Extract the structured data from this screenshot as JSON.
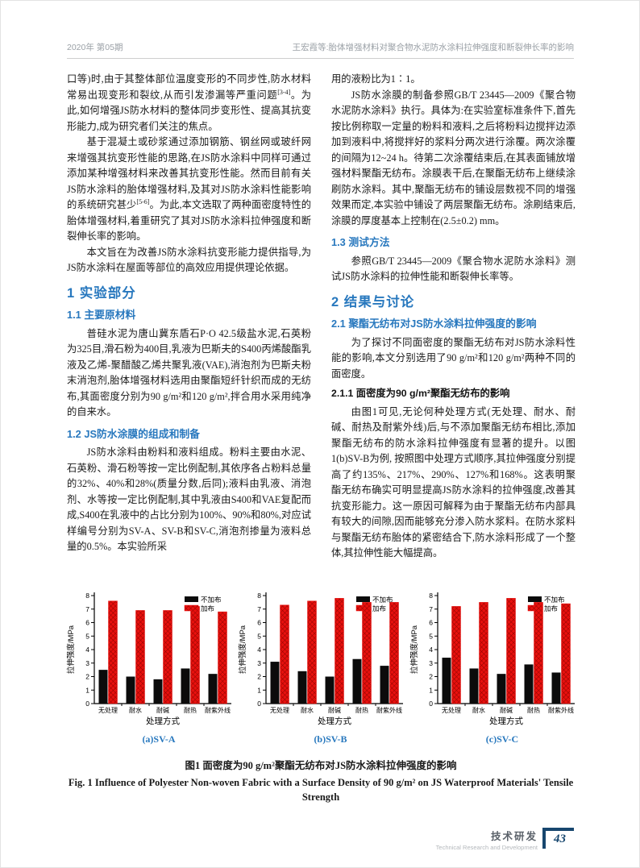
{
  "colors": {
    "accent_blue": "#2878be",
    "footer_navy": "#17466e",
    "bar_black": "#0b0b0b",
    "bar_red": "#e8110e",
    "header_gray": "#9aa0a6"
  },
  "header": {
    "issue": "2020年 第05期",
    "running_title": "王宏霞等:胎体增强材料对聚合物水泥防水涂料拉伸强度和断裂伸长率的影响"
  },
  "intro": {
    "p1a": "口等)时,由于其整体部位温度变形的不同步性,防水材料常易出现变形和裂纹,从而引发渗漏等严重问题",
    "p1_sup": "[3-4]",
    "p1b": "。为此,如何增强JS防水材料的整体同步变形性、提高其抗变形能力,成为研究者们关注的焦点。",
    "p2a": "基于混凝土或砂浆通过添加钢筋、钢丝网或玻纤网来增强其抗变形性能的思路,在JS防水涂料中同样可通过添加某种增强材料来改善其抗变形性能。然而目前有关JS防水涂料的胎体增强材料,及其对JS防水涂料性能影响的系统研究甚少",
    "p2_sup": "[5-6]",
    "p2b": "。为此,本文选取了两种面密度特性的胎体增强材料,着重研究了其对JS防水涂料拉伸强度和断裂伸长率的影响。",
    "p3": "本文旨在为改善JS防水涂料抗变形能力提供指导,为JS防水涂料在屋面等部位的高效应用提供理论依据。"
  },
  "section1": {
    "title": "1 实验部分",
    "s11_title": "1.1 主要原材料",
    "s11_p": "普硅水泥为唐山冀东盾石P·O 42.5级盐水泥,石英粉为325目,滑石粉为400目,乳液为巴斯夫的S400丙烯酸酯乳液及乙烯-聚醋酸乙烯共聚乳液(VAE),消泡剂为巴斯夫粉末消泡剂,胎体增强材料选用由聚酯短纤针织而成的无纺布,其面密度分别为90 g/m²和120 g/m²,拌合用水采用纯净的自来水。",
    "s12_title": "1.2 JS防水涂膜的组成和制备",
    "s12_p": "JS防水涂料由粉料和液料组成。粉料主要由水泥、石英粉、滑石粉等按一定比例配制,其依序各占粉料总量的32%、40%和28%(质量分数,后同);液料由乳液、消泡剂、水等按一定比例配制,其中乳液由S400和VAE复配而成,S400在乳液中的占比分别为100%、90%和80%,对应试样编号分别为SV-A、SV-B和SV-C,消泡剂掺量为液料总量的0.5%。本实验所采"
  },
  "right_column": {
    "p_cont": "用的液粉比为1∶1。",
    "p_prep": "JS防水涂膜的制备参照GB/T 23445—2009《聚合物水泥防水涂料》执行。具体为:在实验室标准条件下,首先按比例称取一定量的粉料和液料,之后将粉料边搅拌边添加到液料中,将搅拌好的浆料分两次进行涂覆。两次涂覆的间隔为12~24 h。待第二次涂覆结束后,在其表面铺放增强材料聚酯无纺布。涂膜表干后,在聚酯无纺布上继续涂刷防水涂料。其中,聚酯无纺布的铺设层数视不同的增强效果而定,本实验中铺设了两层聚酯无纺布。涂刷结束后,涂膜的厚度基本上控制在(2.5±0.2) mm。",
    "s13_title": "1.3 测试方法",
    "s13_p": "参照GB/T 23445—2009《聚合物水泥防水涂料》测试JS防水涂料的拉伸性能和断裂伸长率等。",
    "sec2_title": "2 结果与讨论",
    "s21_title": "2.1 聚酯无纺布对JS防水涂料拉伸强度的影响",
    "s21_p": "为了探讨不同面密度的聚酯无纺布对JS防水涂料性能的影响,本文分别选用了90 g/m²和120 g/m²两种不同的面密度。",
    "s211_title": "2.1.1 面密度为90 g/m²聚酯无纺布的影响",
    "s211_p": "由图1可见,无论何种处理方式(无处理、耐水、耐碱、耐热及耐紫外线)后,与不添加聚酯无纺布相比,添加聚酯无纺布的防水涂料拉伸强度有显著的提升。以图1(b)SV-B为例, 按照图中处理方式顺序,其拉伸强度分别提高了约135%、217%、290%、127%和168%。这表明聚酯无纺布确实可明显提高JS防水涂料的拉伸强度,改善其抗变形能力。这一原因可解释为由于聚酯无纺布内部具有较大的间隙,因而能够充分渗入防水浆料。在防水浆料与聚酯无纺布胎体的紧密结合下,防水涂料形成了一个整体,其拉伸性能大幅提高。"
  },
  "chart_data": [
    {
      "type": "bar",
      "panel_label": "(a)SV-A",
      "categories": [
        "无处理",
        "耐水",
        "耐碱",
        "耐热",
        "耐紫外线"
      ],
      "series": [
        {
          "name": "不加布",
          "color": "#0b0b0b",
          "values": [
            2.5,
            2.0,
            1.8,
            2.6,
            2.2
          ]
        },
        {
          "name": "加布",
          "color": "#e8110e",
          "values": [
            7.6,
            6.9,
            6.9,
            7.2,
            6.8
          ]
        }
      ],
      "xlabel": "处理方式",
      "ylabel": "拉伸强度/MPa",
      "ylim": [
        0,
        8
      ],
      "ytick_step": 1,
      "grid": false,
      "legend_position": "top-right"
    },
    {
      "type": "bar",
      "panel_label": "(b)SV-B",
      "categories": [
        "无处理",
        "耐水",
        "耐碱",
        "耐热",
        "耐紫外线"
      ],
      "series": [
        {
          "name": "不加布",
          "color": "#0b0b0b",
          "values": [
            3.1,
            2.4,
            2.0,
            3.3,
            2.8
          ]
        },
        {
          "name": "加布",
          "color": "#e8110e",
          "values": [
            7.3,
            7.6,
            7.8,
            7.5,
            7.5
          ]
        }
      ],
      "xlabel": "处理方式",
      "ylabel": "拉伸强度/MPa",
      "ylim": [
        0,
        8
      ],
      "ytick_step": 1,
      "grid": false,
      "legend_position": "top-right"
    },
    {
      "type": "bar",
      "panel_label": "(c)SV-C",
      "categories": [
        "无处理",
        "耐水",
        "耐碱",
        "耐热",
        "耐紫外线"
      ],
      "series": [
        {
          "name": "不加布",
          "color": "#0b0b0b",
          "values": [
            3.4,
            2.6,
            2.2,
            2.9,
            2.3
          ]
        },
        {
          "name": "加布",
          "color": "#e8110e",
          "values": [
            7.2,
            7.5,
            7.8,
            7.5,
            7.4
          ]
        }
      ],
      "xlabel": "处理方式",
      "ylabel": "拉伸强度/MPa",
      "ylim": [
        0,
        8
      ],
      "ytick_step": 1,
      "grid": false,
      "legend_position": "top-right"
    }
  ],
  "figure": {
    "caption_zh": "图1 面密度为90 g/m²聚酯无纺布对JS防水涂料拉伸强度的影响",
    "caption_en": "Fig. 1 Influence of Polyester Non-woven Fabric with a Surface Density of 90 g/m² on JS Waterproof Materials' Tensile Strength"
  },
  "footer": {
    "section_zh": "技术研发",
    "section_en": "Technical Research and Development",
    "page_number": "43"
  }
}
